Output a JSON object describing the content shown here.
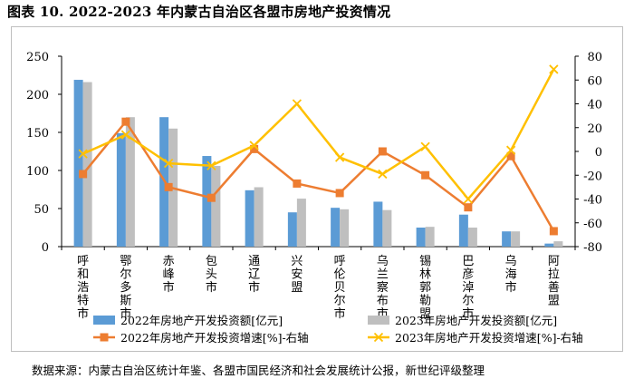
{
  "title": "图表 10. 2022-2023 年内蒙古自治区各盟市房地产投资情况",
  "source": "数据来源：内蒙古自治区统计年鉴、各盟市国民经济和社会发展统计公报，新世纪评级整理",
  "chart_data": {
    "type": "bar+line",
    "categories": [
      "呼和浩特市",
      "鄂尔多斯市",
      "赤峰市",
      "包头市",
      "通辽市",
      "兴安盟",
      "呼伦贝尔市",
      "乌兰察布市",
      "锡林郭勒盟",
      "巴彦淖尔市",
      "乌海市",
      "阿拉善盟"
    ],
    "left_axis": {
      "min": 0,
      "max": 250,
      "ticks": [
        0,
        50,
        100,
        150,
        200,
        250
      ]
    },
    "right_axis": {
      "min": -80,
      "max": 80,
      "ticks": [
        80,
        60,
        40,
        20,
        0,
        -20,
        -40,
        -60,
        -80
      ]
    },
    "series": [
      {
        "name": "2022年房地产开发投资额[亿元]",
        "type": "bar",
        "axis": "left",
        "color": "#5b9bd5",
        "values": [
          219,
          149,
          170,
          119,
          74,
          45,
          51,
          59,
          25,
          42,
          20,
          4
        ]
      },
      {
        "name": "2023年房地产开发投资额[亿元]",
        "type": "bar",
        "axis": "left",
        "color": "#bfbfbf",
        "values": [
          216,
          170,
          155,
          106,
          78,
          63,
          49,
          48,
          26,
          25,
          20,
          7
        ]
      },
      {
        "name": "2022年房地产开发投资增速[%]-右轴",
        "type": "line",
        "axis": "right",
        "color": "#ed7d31",
        "values": [
          -19,
          25,
          -30,
          -39,
          2,
          -27,
          -35,
          0,
          -20,
          -47,
          -4,
          -67
        ]
      },
      {
        "name": "2023年房地产开发投资增速[%]-右轴",
        "type": "line",
        "axis": "right",
        "color": "#ffc000",
        "values": [
          -2,
          14,
          -10,
          -12,
          5,
          40,
          -5,
          -19,
          4,
          -40,
          1,
          69
        ]
      }
    ]
  }
}
